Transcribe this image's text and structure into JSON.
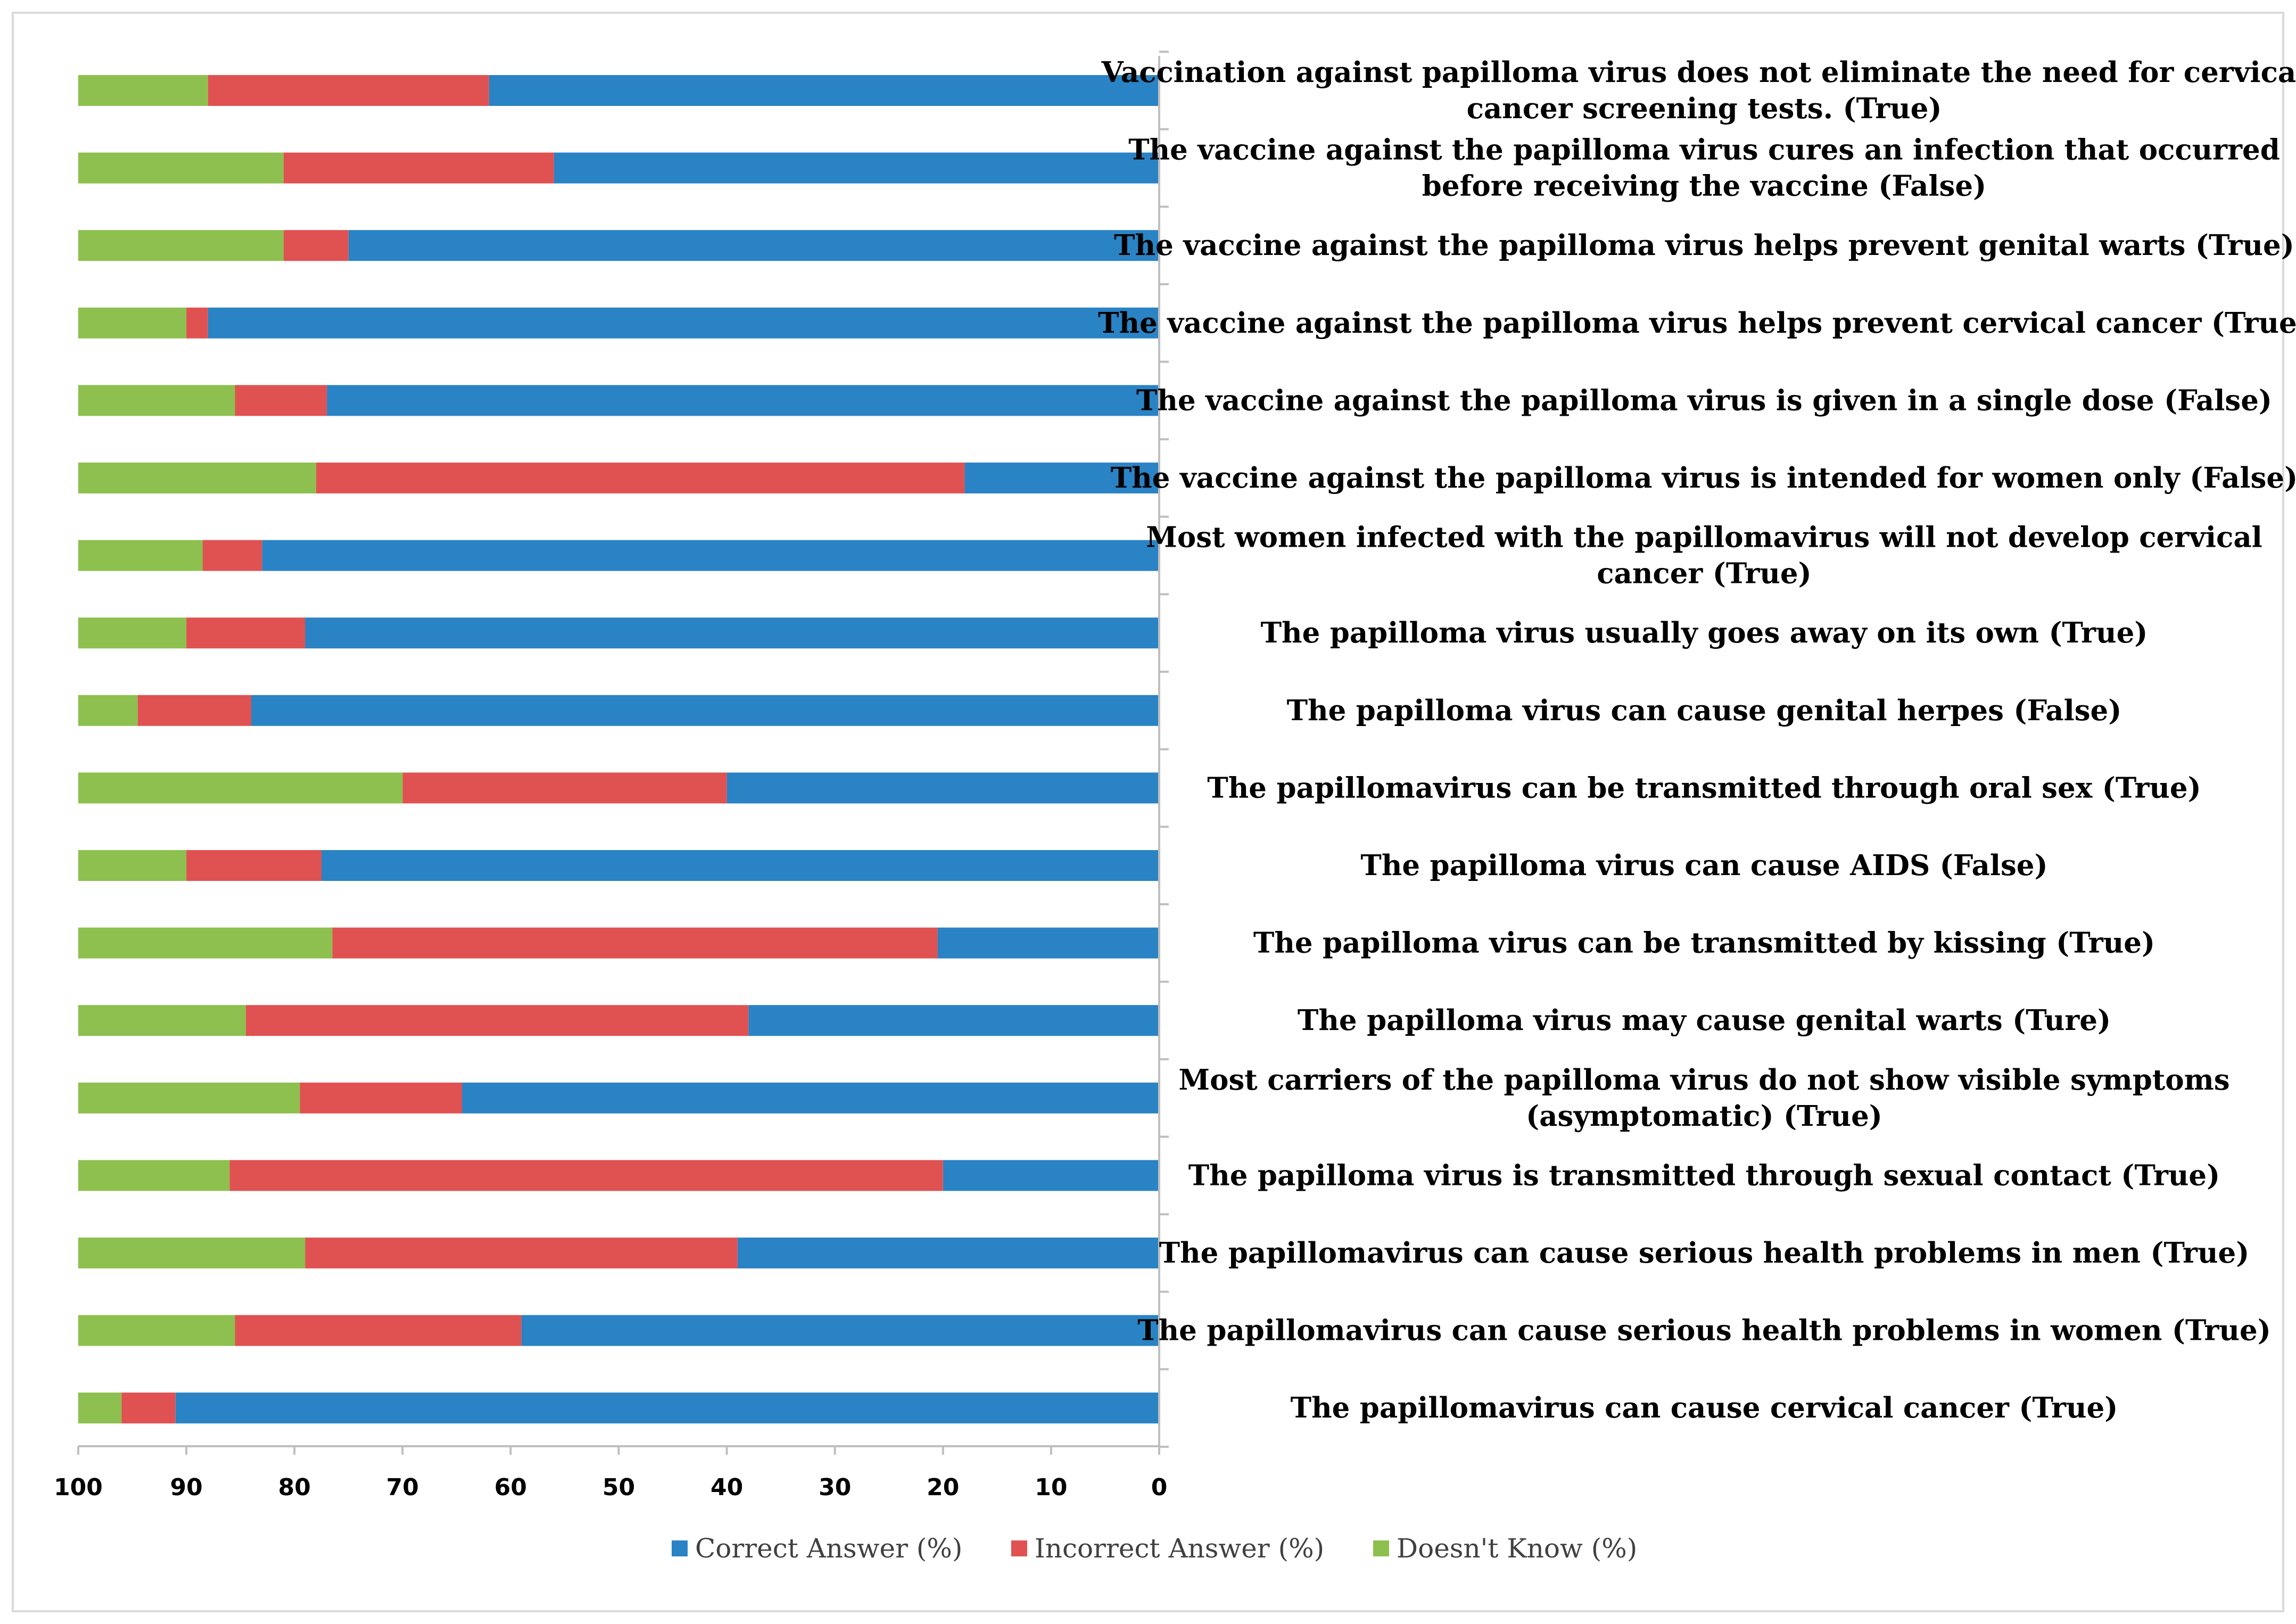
{
  "chart_data": {
    "type": "bar",
    "orientation": "horizontal-stacked",
    "x_axis_reversed": true,
    "xlim": [
      0,
      100
    ],
    "x_ticks": [
      100,
      90,
      80,
      70,
      60,
      50,
      40,
      30,
      20,
      10,
      0
    ],
    "legend_position": "bottom-center",
    "grid": false,
    "categories": [
      [
        "Vaccination against papilloma virus does not eliminate the need for cervical",
        "cancer screening tests. (True)"
      ],
      [
        "The vaccine against the papilloma virus cures an infection that occurred",
        "before receiving the vaccine (False)"
      ],
      [
        "The vaccine against the papilloma virus helps prevent genital warts (True)"
      ],
      [
        "The vaccine against the papilloma virus helps prevent cervical cancer (True)"
      ],
      [
        "The vaccine against the papilloma virus is given in a single dose (False)"
      ],
      [
        "The vaccine against the papilloma virus is intended for women only (False)"
      ],
      [
        "Most women infected with the papillomavirus will not develop cervical",
        "cancer (True)"
      ],
      [
        "The papilloma virus usually goes away on its own (True)"
      ],
      [
        "The papilloma virus can cause genital herpes (False)"
      ],
      [
        "The papillomavirus can be transmitted through oral sex (True)"
      ],
      [
        "The papilloma virus can cause AIDS (False)"
      ],
      [
        "The papilloma virus can be transmitted by kissing (True)"
      ],
      [
        "The papilloma virus may cause genital warts (Ture)"
      ],
      [
        "Most carriers of the papilloma virus do not show visible symptoms",
        "(asymptomatic) (True)"
      ],
      [
        "The papilloma virus is transmitted through sexual contact (True)"
      ],
      [
        "The papillomavirus can cause serious health problems in men (True)"
      ],
      [
        "The papillomavirus can cause serious health problems in women (True)"
      ],
      [
        "The papillomavirus can cause cervical cancer (True)"
      ]
    ],
    "series": [
      {
        "name": "Correct Answer (%)",
        "color": "#2a83c4",
        "values": [
          62,
          56,
          75,
          88,
          77,
          18,
          83,
          79,
          84,
          40,
          77.5,
          20.5,
          38,
          64.5,
          20,
          39,
          59,
          91
        ]
      },
      {
        "name": "Incorrect Answer (%)",
        "color": "#e05252",
        "values": [
          26,
          25,
          6,
          2,
          8.5,
          60,
          5.5,
          11,
          10.5,
          30,
          12.5,
          56,
          46.5,
          15,
          66,
          40,
          26.5,
          5
        ]
      },
      {
        "name": "Doesn't Know (%)",
        "color": "#8dc04e",
        "values": [
          12,
          19,
          19,
          10,
          14.5,
          22,
          11.5,
          10,
          5.5,
          30,
          10,
          23.5,
          15.5,
          20.5,
          14,
          21,
          14.5,
          4
        ]
      }
    ]
  }
}
